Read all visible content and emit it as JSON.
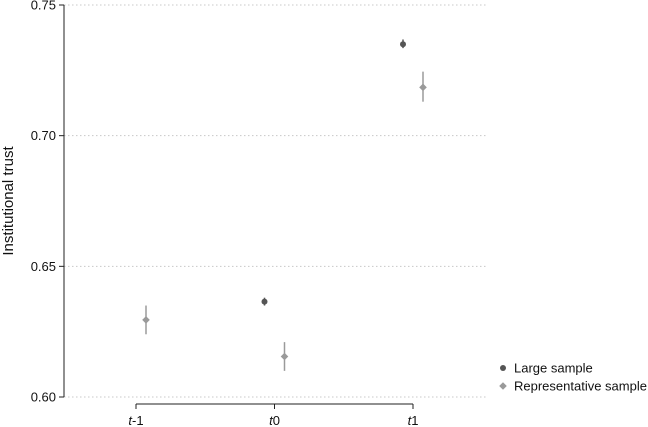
{
  "chart_data": {
    "type": "scatter",
    "title": "",
    "xlabel": "",
    "ylabel": "Institutional trust",
    "ylim": [
      0.6,
      0.75
    ],
    "y_ticks": [
      "0.60",
      "0.65",
      "0.70",
      "0.75"
    ],
    "categories": [
      {
        "italic": "t",
        "suffix": "-1"
      },
      {
        "italic": "t",
        "suffix": "0"
      },
      {
        "italic": "t",
        "suffix": "1"
      }
    ],
    "grid": true,
    "legend_position": "bottom-right",
    "series": [
      {
        "name": "Large sample",
        "marker": "circle",
        "color": "#555555",
        "points": [
          {
            "x": 1,
            "y": 0.6365,
            "lo": 0.635,
            "hi": 0.638
          },
          {
            "x": 2,
            "y": 0.735,
            "lo": 0.7335,
            "hi": 0.7368
          }
        ]
      },
      {
        "name": "Representative sample",
        "marker": "diamond",
        "color": "#9a9a9a",
        "points": [
          {
            "x": 0,
            "y": 0.6295,
            "lo": 0.624,
            "hi": 0.635
          },
          {
            "x": 1,
            "y": 0.6155,
            "lo": 0.61,
            "hi": 0.621
          },
          {
            "x": 2,
            "y": 0.7185,
            "lo": 0.713,
            "hi": 0.7245
          }
        ]
      }
    ]
  }
}
